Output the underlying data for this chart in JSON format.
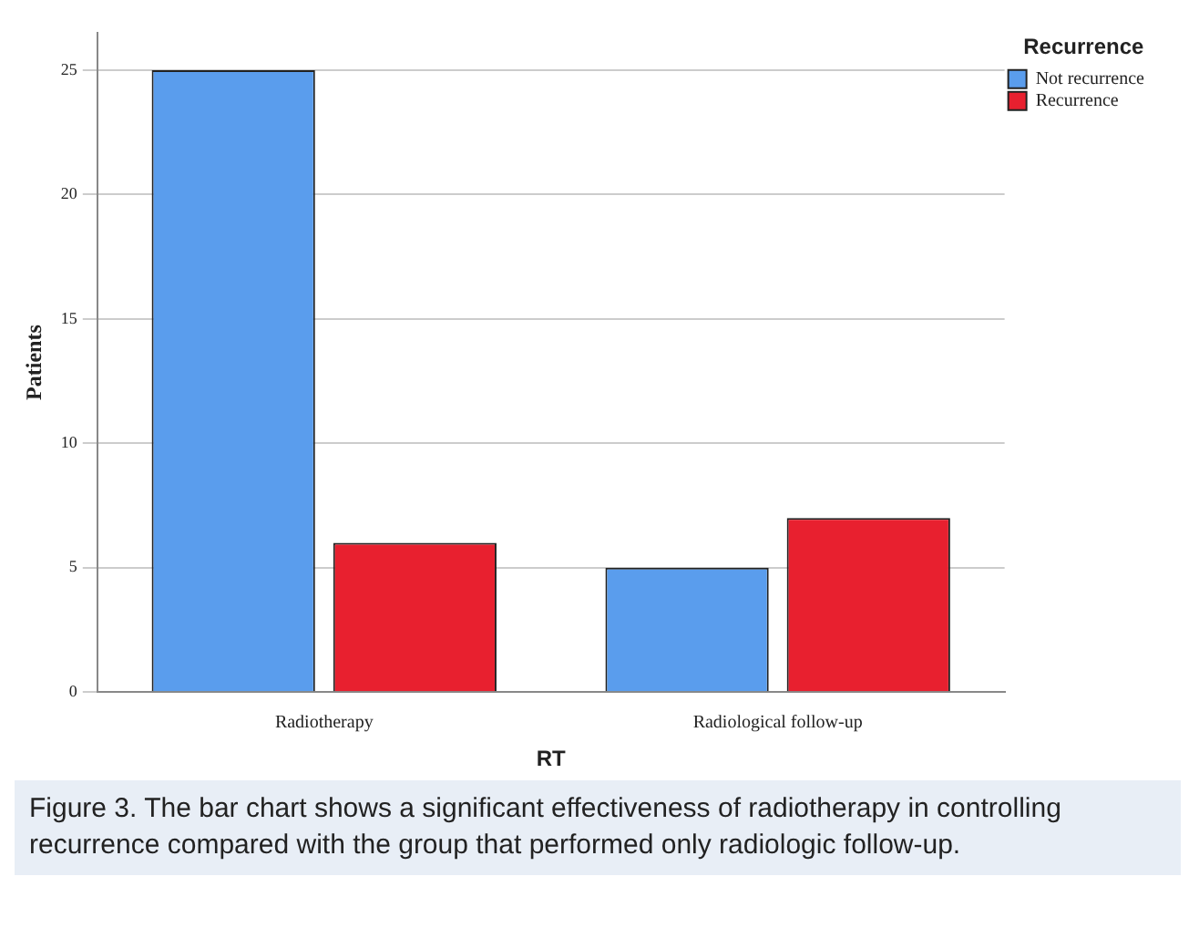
{
  "chart_data": {
    "type": "bar",
    "xlabel": "RT",
    "ylabel": "Patients",
    "legend_title": "Recurrence",
    "categories": [
      "Radiotherapy",
      "Radiological follow-up"
    ],
    "series": [
      {
        "name": "Not recurrence",
        "color": "#5a9ded",
        "values": [
          25,
          5
        ]
      },
      {
        "name": "Recurrence",
        "color": "#e8202f",
        "values": [
          6,
          7
        ]
      }
    ],
    "ylim": [
      0,
      26.5
    ],
    "yticks": [
      0,
      5,
      10,
      15,
      20,
      25
    ],
    "grid": "y",
    "legend": "top right",
    "annotations": [
      "Figure 3. The bar chart shows a significant effectiveness of radiotherapy in controlling recurrence compared with the group that performed only radiologic follow-up."
    ]
  }
}
